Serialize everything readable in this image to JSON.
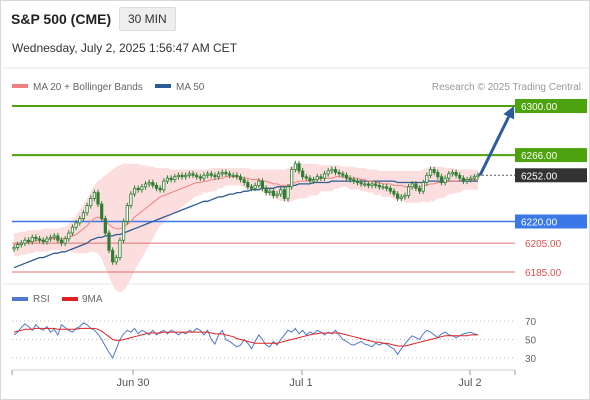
{
  "header": {
    "instrument": "S&P 500 (CME)",
    "interval": "30 MIN",
    "timestamp": "Wednesday, July 2, 2025 1:56:47 AM CET"
  },
  "colors": {
    "ma20": "#f08080",
    "bollinger_fill": "#fbd3d3",
    "ma50": "#2d5b94",
    "candle": "#2e7d32",
    "resistance": "#4ca30d",
    "support_strong": "#3b78e7",
    "support": "#e07070",
    "rsi": "#4f79c9",
    "rsi_ma": "#e02020",
    "arrow": "#2d5ba0",
    "last_price_bg": "#333333"
  },
  "chart_data": [
    {
      "type": "candlestick",
      "title": "",
      "legend": [
        {
          "name": "MA 20 + Bollinger Bands",
          "color": "#f08080"
        },
        {
          "name": "MA 50",
          "color": "#2d5b94"
        }
      ],
      "legend_position": "top-left",
      "credit": "Research © 2025 Trading Central",
      "x_ticks": [
        "Jun 30",
        "Jul 1",
        "Jul 2"
      ],
      "ylim": [
        6178,
        6305
      ],
      "grid": false,
      "last_price": 6252.0,
      "levels": [
        {
          "value": 6300.0,
          "label": "6300.00",
          "kind": "resistance"
        },
        {
          "value": 6266.0,
          "label": "6266.00",
          "kind": "resistance"
        },
        {
          "value": 6220.0,
          "label": "6220.00",
          "kind": "support-strong"
        },
        {
          "value": 6205.0,
          "label": "6205.00",
          "kind": "support"
        },
        {
          "value": 6185.0,
          "label": "6185.00",
          "kind": "support"
        }
      ],
      "projection": {
        "from": 6252.0,
        "to": 6300.0,
        "direction": "up"
      },
      "close": [
        6202,
        6204,
        6205,
        6207,
        6206,
        6209,
        6208,
        6207,
        6206,
        6208,
        6209,
        6210,
        6207,
        6205,
        6208,
        6212,
        6216,
        6219,
        6222,
        6226,
        6231,
        6236,
        6240,
        6232,
        6222,
        6212,
        6200,
        6192,
        6195,
        6207,
        6220,
        6231,
        6239,
        6243,
        6242,
        6244,
        6246,
        6247,
        6245,
        6243,
        6242,
        6248,
        6250,
        6249,
        6251,
        6252,
        6251,
        6252,
        6253,
        6252,
        6251,
        6250,
        6252,
        6253,
        6252,
        6251,
        6253,
        6254,
        6253,
        6252,
        6252,
        6251,
        6249,
        6247,
        6244,
        6243,
        6245,
        6248,
        6243,
        6240,
        6241,
        6238,
        6239,
        6242,
        6236,
        6244,
        6256,
        6260,
        6255,
        6251,
        6250,
        6248,
        6249,
        6251,
        6250,
        6253,
        6255,
        6256,
        6254,
        6253,
        6252,
        6250,
        6249,
        6248,
        6247,
        6246,
        6246,
        6245,
        6246,
        6245,
        6244,
        6244,
        6243,
        6241,
        6239,
        6236,
        6237,
        6238,
        6244,
        6246,
        6243,
        6241,
        6247,
        6252,
        6256,
        6254,
        6251,
        6247,
        6250,
        6253,
        6254,
        6252,
        6250,
        6248,
        6249,
        6250,
        6251,
        6252
      ],
      "ma20": [
        6204,
        6204,
        6205,
        6205,
        6206,
        6206,
        6207,
        6207,
        6207,
        6207,
        6208,
        6208,
        6208,
        6208,
        6208,
        6209,
        6210,
        6211,
        6213,
        6215,
        6217,
        6220,
        6222,
        6223,
        6222,
        6220,
        6218,
        6216,
        6215,
        6215,
        6216,
        6218,
        6220,
        6223,
        6225,
        6227,
        6229,
        6231,
        6233,
        6235,
        6237,
        6238,
        6239,
        6240,
        6241,
        6242,
        6243,
        6244,
        6245,
        6246,
        6247,
        6247,
        6248,
        6248,
        6249,
        6249,
        6250,
        6250,
        6251,
        6251,
        6251,
        6251,
        6251,
        6250,
        6250,
        6249,
        6249,
        6249,
        6248,
        6248,
        6247,
        6246,
        6246,
        6245,
        6245,
        6245,
        6246,
        6247,
        6248,
        6248,
        6248,
        6249,
        6249,
        6249,
        6250,
        6250,
        6250,
        6250,
        6251,
        6251,
        6251,
        6251,
        6250,
        6250,
        6250,
        6249,
        6249,
        6248,
        6248,
        6247,
        6247,
        6246,
        6246,
        6246,
        6245,
        6245,
        6245,
        6244,
        6244,
        6244,
        6244,
        6244,
        6245,
        6245,
        6246,
        6246,
        6247,
        6247,
        6247,
        6248,
        6248,
        6248,
        6248,
        6249,
        6249,
        6249,
        6249,
        6249
      ],
      "bb_upper": [
        6212,
        6212,
        6213,
        6213,
        6214,
        6214,
        6214,
        6214,
        6215,
        6215,
        6215,
        6215,
        6215,
        6216,
        6216,
        6218,
        6221,
        6224,
        6228,
        6232,
        6236,
        6241,
        6245,
        6248,
        6250,
        6252,
        6254,
        6256,
        6258,
        6259,
        6260,
        6260,
        6260,
        6260,
        6260,
        6259,
        6259,
        6258,
        6258,
        6257,
        6257,
        6257,
        6257,
        6256,
        6256,
        6256,
        6256,
        6256,
        6256,
        6256,
        6256,
        6256,
        6256,
        6256,
        6257,
        6257,
        6257,
        6257,
        6257,
        6257,
        6257,
        6257,
        6257,
        6257,
        6257,
        6256,
        6256,
        6256,
        6256,
        6256,
        6256,
        6256,
        6256,
        6256,
        6256,
        6257,
        6258,
        6259,
        6260,
        6260,
        6260,
        6260,
        6260,
        6260,
        6259,
        6259,
        6259,
        6259,
        6259,
        6259,
        6258,
        6258,
        6258,
        6258,
        6257,
        6257,
        6257,
        6256,
        6256,
        6256,
        6255,
        6255,
        6255,
        6255,
        6255,
        6255,
        6255,
        6255,
        6255,
        6255,
        6255,
        6255,
        6256,
        6257,
        6258,
        6258,
        6258,
        6258,
        6257,
        6257,
        6257,
        6256,
        6256,
        6256,
        6256,
        6256,
        6256,
        6256
      ],
      "bb_lower": [
        6196,
        6196,
        6197,
        6197,
        6198,
        6198,
        6199,
        6199,
        6199,
        6199,
        6200,
        6200,
        6200,
        6200,
        6200,
        6200,
        6199,
        6198,
        6198,
        6198,
        6198,
        6199,
        6199,
        6198,
        6194,
        6188,
        6182,
        6176,
        6172,
        6171,
        6172,
        6176,
        6180,
        6186,
        6190,
        6195,
        6199,
        6204,
        6208,
        6213,
        6217,
        6219,
        6221,
        6224,
        6226,
        6228,
        6230,
        6232,
        6234,
        6236,
        6238,
        6238,
        6240,
        6240,
        6241,
        6241,
        6243,
        6243,
        6245,
        6245,
        6245,
        6245,
        6245,
        6243,
        6243,
        6242,
        6242,
        6242,
        6240,
        6240,
        6238,
        6236,
        6236,
        6234,
        6234,
        6233,
        6234,
        6235,
        6236,
        6236,
        6236,
        6238,
        6238,
        6238,
        6241,
        6241,
        6241,
        6241,
        6243,
        6243,
        6244,
        6244,
        6242,
        6242,
        6243,
        6241,
        6241,
        6240,
        6240,
        6238,
        6239,
        6237,
        6237,
        6237,
        6235,
        6235,
        6235,
        6233,
        6233,
        6233,
        6233,
        6233,
        6234,
        6233,
        6234,
        6234,
        6236,
        6236,
        6237,
        6239,
        6239,
        6240,
        6240,
        6242,
        6242,
        6242,
        6242,
        6242
      ],
      "ma50": [
        6188,
        6189,
        6190,
        6191,
        6192,
        6193,
        6194,
        6195,
        6195,
        6196,
        6197,
        6198,
        6198,
        6199,
        6199,
        6200,
        6201,
        6202,
        6203,
        6204,
        6205,
        6207,
        6208,
        6209,
        6209,
        6210,
        6210,
        6210,
        6211,
        6211,
        6212,
        6213,
        6214,
        6215,
        6216,
        6217,
        6218,
        6219,
        6220,
        6221,
        6222,
        6223,
        6224,
        6225,
        6226,
        6227,
        6228,
        6229,
        6230,
        6231,
        6232,
        6233,
        6234,
        6234,
        6235,
        6236,
        6237,
        6237,
        6238,
        6239,
        6239,
        6240,
        6240,
        6241,
        6241,
        6242,
        6242,
        6242,
        6243,
        6243,
        6243,
        6243,
        6244,
        6244,
        6244,
        6244,
        6245,
        6245,
        6246,
        6246,
        6246,
        6246,
        6247,
        6247,
        6247,
        6247,
        6247,
        6248,
        6248,
        6248,
        6248,
        6248,
        6248,
        6248,
        6248,
        6248,
        6248,
        6248,
        6248,
        6248,
        6248,
        6248,
        6248,
        6248,
        6248,
        6247,
        6247,
        6247,
        6247,
        6247,
        6247,
        6247,
        6247,
        6248,
        6248,
        6248,
        6248,
        6248,
        6248,
        6248,
        6248,
        6248,
        6248,
        6248,
        6248,
        6248,
        6248,
        6248
      ]
    },
    {
      "type": "line",
      "title": "",
      "legend": [
        {
          "name": "RSI",
          "color": "#4f79c9"
        },
        {
          "name": "9MA",
          "color": "#e02020"
        }
      ],
      "legend_position": "top-left",
      "ylim": [
        20,
        80
      ],
      "y_ticks": [
        70,
        50,
        30
      ],
      "series": [
        {
          "name": "RSI",
          "values": [
            55,
            58,
            63,
            67,
            64,
            60,
            66,
            62,
            60,
            64,
            58,
            61,
            55,
            66,
            63,
            60,
            58,
            62,
            64,
            68,
            66,
            62,
            60,
            56,
            50,
            43,
            36,
            30,
            40,
            50,
            56,
            60,
            58,
            62,
            56,
            60,
            58,
            55,
            60,
            55,
            58,
            60,
            56,
            60,
            58,
            55,
            58,
            56,
            60,
            58,
            62,
            60,
            55,
            60,
            50,
            45,
            55,
            60,
            50,
            48,
            45,
            42,
            44,
            50,
            46,
            40,
            48,
            55,
            50,
            44,
            42,
            48,
            44,
            50,
            55,
            60,
            58,
            62,
            56,
            60,
            55,
            58,
            56,
            60,
            58,
            55,
            58,
            56,
            60,
            55,
            50,
            48,
            45,
            44,
            46,
            48,
            45,
            44,
            42,
            46,
            44,
            46,
            45,
            42,
            40,
            34,
            40,
            45,
            50,
            54,
            52,
            50,
            56,
            60,
            58,
            55,
            52,
            56,
            58,
            55,
            54,
            52,
            54,
            56,
            57,
            58,
            56,
            55
          ]
        },
        {
          "name": "9MA",
          "values": [
            58,
            59,
            60,
            61,
            61,
            61,
            62,
            62,
            62,
            62,
            62,
            62,
            61,
            61,
            61,
            61,
            61,
            61,
            62,
            62,
            62,
            62,
            62,
            61,
            59,
            56,
            53,
            50,
            49,
            49,
            50,
            51,
            52,
            53,
            54,
            55,
            56,
            57,
            57,
            57,
            57,
            58,
            58,
            58,
            58,
            58,
            58,
            58,
            58,
            58,
            58,
            58,
            58,
            58,
            57,
            56,
            56,
            56,
            55,
            54,
            53,
            51,
            50,
            49,
            48,
            47,
            46,
            46,
            46,
            46,
            46,
            46,
            46,
            47,
            48,
            49,
            50,
            51,
            52,
            53,
            54,
            55,
            56,
            56,
            57,
            57,
            57,
            57,
            57,
            57,
            56,
            55,
            54,
            53,
            52,
            51,
            50,
            49,
            48,
            47,
            47,
            46,
            46,
            45,
            44,
            43,
            43,
            43,
            44,
            45,
            46,
            47,
            48,
            49,
            50,
            51,
            52,
            53,
            54,
            54,
            54,
            54,
            54,
            54,
            54,
            55,
            55,
            55
          ]
        }
      ]
    }
  ]
}
